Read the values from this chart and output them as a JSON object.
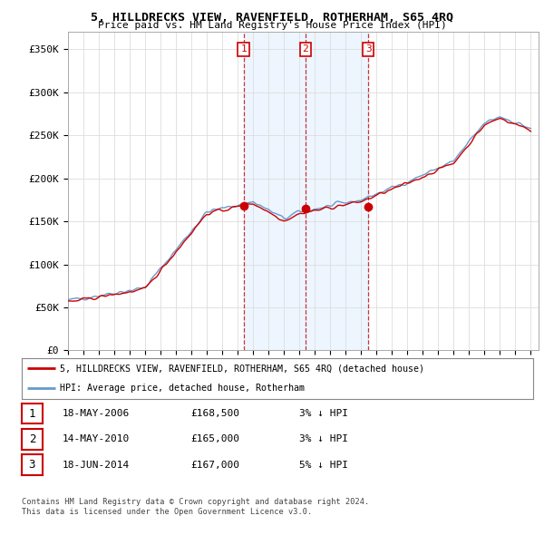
{
  "title": "5, HILLDRECKS VIEW, RAVENFIELD, ROTHERHAM, S65 4RQ",
  "subtitle": "Price paid vs. HM Land Registry's House Price Index (HPI)",
  "ylabel_ticks": [
    "£0",
    "£50K",
    "£100K",
    "£150K",
    "£200K",
    "£250K",
    "£300K",
    "£350K"
  ],
  "ytick_values": [
    0,
    50000,
    100000,
    150000,
    200000,
    250000,
    300000,
    350000
  ],
  "ylim": [
    0,
    370000
  ],
  "xlim_start": 1995,
  "xlim_end": 2025.5,
  "red_line_color": "#cc0000",
  "blue_line_color": "#6699cc",
  "shade_color": "#ddeeff",
  "grid_color": "#dddddd",
  "bg_color": "#ffffff",
  "legend_red_label": "5, HILLDRECKS VIEW, RAVENFIELD, ROTHERHAM, S65 4RQ (detached house)",
  "legend_blue_label": "HPI: Average price, detached house, Rotherham",
  "transactions": [
    {
      "num": 1,
      "date": "18-MAY-2006",
      "price": "£168,500",
      "hpi": "3% ↓ HPI",
      "x_year": 2006.38
    },
    {
      "num": 2,
      "date": "14-MAY-2010",
      "price": "£165,000",
      "hpi": "3% ↓ HPI",
      "x_year": 2010.38
    },
    {
      "num": 3,
      "date": "18-JUN-2014",
      "price": "£167,000",
      "hpi": "5% ↓ HPI",
      "x_year": 2014.46
    }
  ],
  "transaction_prices": [
    168500,
    165000,
    167000
  ],
  "footnote1": "Contains HM Land Registry data © Crown copyright and database right 2024.",
  "footnote2": "This data is licensed under the Open Government Licence v3.0.",
  "xtick_years": [
    1995,
    1996,
    1997,
    1998,
    1999,
    2000,
    2001,
    2002,
    2003,
    2004,
    2005,
    2006,
    2007,
    2008,
    2009,
    2010,
    2011,
    2012,
    2013,
    2014,
    2015,
    2016,
    2017,
    2018,
    2019,
    2020,
    2021,
    2022,
    2023,
    2024,
    2025
  ]
}
